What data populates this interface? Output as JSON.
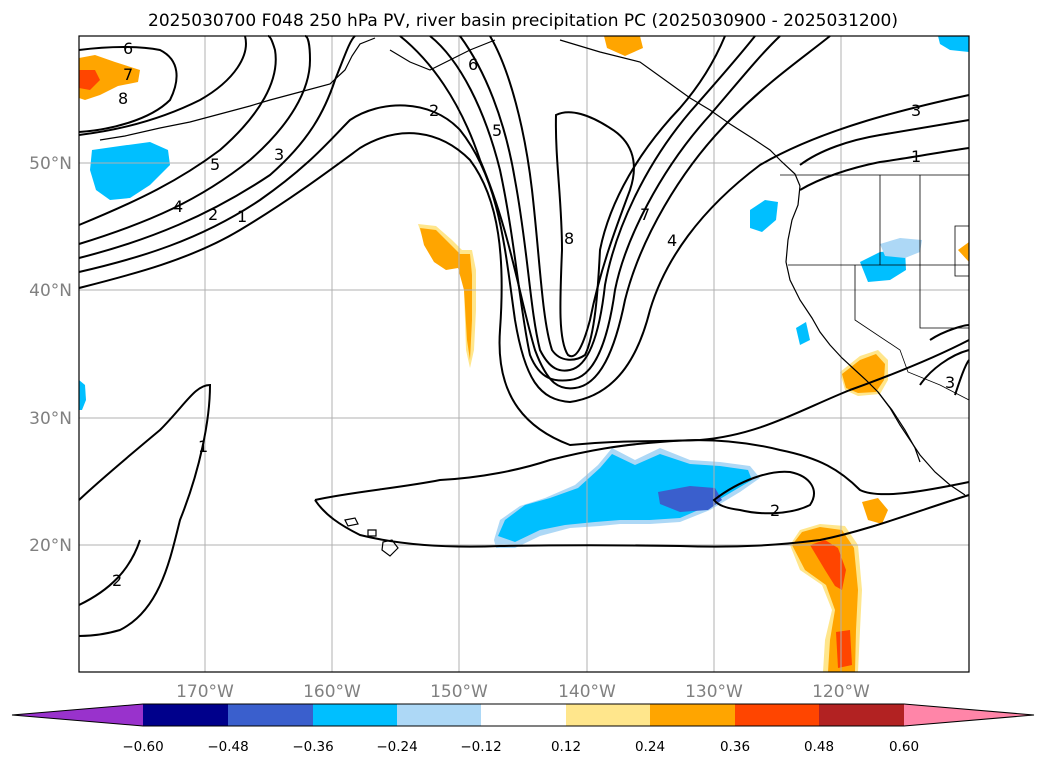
{
  "title": "2025030700 F048 250 hPa PV, river basin precipitation PC (2025030900 - 2025031200)",
  "lat_labels": [
    "50°N",
    "40°N",
    "30°N",
    "20°N"
  ],
  "lon_labels": [
    "170°W",
    "160°W",
    "150°W",
    "140°W",
    "130°W",
    "120°W"
  ],
  "colorbar": {
    "ticks": [
      "−0.60",
      "−0.48",
      "−0.36",
      "−0.24",
      "−0.12",
      "0.12",
      "0.24",
      "0.36",
      "0.48",
      "0.60"
    ],
    "colors": [
      "#9932cc",
      "#00008b",
      "#3a5fcd",
      "#00bfff",
      "#add8f6",
      "#ffffff",
      "#ffe68c",
      "#ffa500",
      "#ff4500",
      "#b22222",
      "#ff85a8"
    ]
  },
  "contour_labels": [
    "6",
    "7",
    "8",
    "5",
    "3",
    "4",
    "2",
    "1",
    "6",
    "2",
    "5",
    "8",
    "7",
    "4",
    "3",
    "1",
    "1",
    "2",
    "3",
    "2"
  ]
}
